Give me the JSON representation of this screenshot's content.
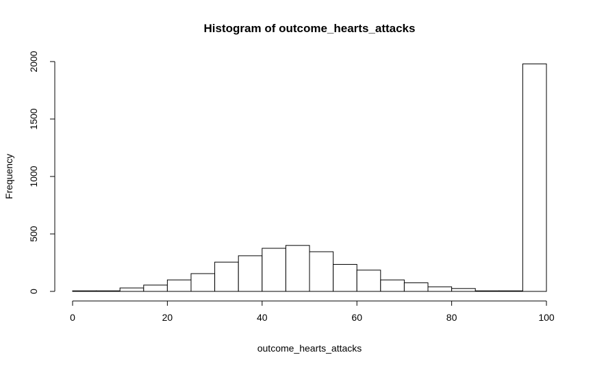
{
  "chart_data": {
    "type": "bar",
    "title": "Histogram of outcome_hearts_attacks",
    "xlabel": "outcome_hearts_attacks",
    "ylabel": "Frequency",
    "bin_width": 5,
    "bins_start": [
      0,
      5,
      10,
      15,
      20,
      25,
      30,
      35,
      40,
      45,
      50,
      55,
      60,
      65,
      70,
      75,
      80,
      85,
      90,
      95
    ],
    "values": [
      5,
      5,
      30,
      55,
      100,
      155,
      255,
      310,
      375,
      400,
      345,
      235,
      185,
      100,
      75,
      40,
      25,
      5,
      5,
      1980
    ],
    "xlim": [
      0,
      100
    ],
    "ylim": [
      0,
      2000
    ],
    "x_ticks": [
      "0",
      "20",
      "40",
      "60",
      "80",
      "100"
    ],
    "y_ticks": [
      "0",
      "500",
      "1000",
      "1500",
      "2000"
    ],
    "grid": false,
    "colors": {
      "bar_fill": "#ffffff",
      "bar_stroke": "#000000"
    }
  }
}
